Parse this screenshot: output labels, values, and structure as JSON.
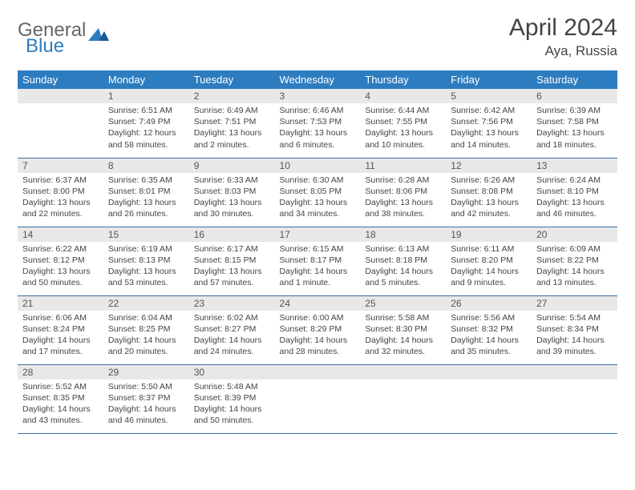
{
  "logo": {
    "general": "General",
    "blue": "Blue"
  },
  "title": "April 2024",
  "location": "Aya, Russia",
  "colors": {
    "header_bg": "#2e7cc0",
    "header_text": "#ffffff",
    "daynum_bg": "#e8e8e8",
    "row_divider": "#3a6ea5",
    "text": "#444444",
    "background": "#ffffff"
  },
  "weekday_labels": [
    "Sunday",
    "Monday",
    "Tuesday",
    "Wednesday",
    "Thursday",
    "Friday",
    "Saturday"
  ],
  "weeks": [
    [
      null,
      {
        "day": "1",
        "sunrise": "Sunrise: 6:51 AM",
        "sunset": "Sunset: 7:49 PM",
        "daylight": "Daylight: 12 hours and 58 minutes."
      },
      {
        "day": "2",
        "sunrise": "Sunrise: 6:49 AM",
        "sunset": "Sunset: 7:51 PM",
        "daylight": "Daylight: 13 hours and 2 minutes."
      },
      {
        "day": "3",
        "sunrise": "Sunrise: 6:46 AM",
        "sunset": "Sunset: 7:53 PM",
        "daylight": "Daylight: 13 hours and 6 minutes."
      },
      {
        "day": "4",
        "sunrise": "Sunrise: 6:44 AM",
        "sunset": "Sunset: 7:55 PM",
        "daylight": "Daylight: 13 hours and 10 minutes."
      },
      {
        "day": "5",
        "sunrise": "Sunrise: 6:42 AM",
        "sunset": "Sunset: 7:56 PM",
        "daylight": "Daylight: 13 hours and 14 minutes."
      },
      {
        "day": "6",
        "sunrise": "Sunrise: 6:39 AM",
        "sunset": "Sunset: 7:58 PM",
        "daylight": "Daylight: 13 hours and 18 minutes."
      }
    ],
    [
      {
        "day": "7",
        "sunrise": "Sunrise: 6:37 AM",
        "sunset": "Sunset: 8:00 PM",
        "daylight": "Daylight: 13 hours and 22 minutes."
      },
      {
        "day": "8",
        "sunrise": "Sunrise: 6:35 AM",
        "sunset": "Sunset: 8:01 PM",
        "daylight": "Daylight: 13 hours and 26 minutes."
      },
      {
        "day": "9",
        "sunrise": "Sunrise: 6:33 AM",
        "sunset": "Sunset: 8:03 PM",
        "daylight": "Daylight: 13 hours and 30 minutes."
      },
      {
        "day": "10",
        "sunrise": "Sunrise: 6:30 AM",
        "sunset": "Sunset: 8:05 PM",
        "daylight": "Daylight: 13 hours and 34 minutes."
      },
      {
        "day": "11",
        "sunrise": "Sunrise: 6:28 AM",
        "sunset": "Sunset: 8:06 PM",
        "daylight": "Daylight: 13 hours and 38 minutes."
      },
      {
        "day": "12",
        "sunrise": "Sunrise: 6:26 AM",
        "sunset": "Sunset: 8:08 PM",
        "daylight": "Daylight: 13 hours and 42 minutes."
      },
      {
        "day": "13",
        "sunrise": "Sunrise: 6:24 AM",
        "sunset": "Sunset: 8:10 PM",
        "daylight": "Daylight: 13 hours and 46 minutes."
      }
    ],
    [
      {
        "day": "14",
        "sunrise": "Sunrise: 6:22 AM",
        "sunset": "Sunset: 8:12 PM",
        "daylight": "Daylight: 13 hours and 50 minutes."
      },
      {
        "day": "15",
        "sunrise": "Sunrise: 6:19 AM",
        "sunset": "Sunset: 8:13 PM",
        "daylight": "Daylight: 13 hours and 53 minutes."
      },
      {
        "day": "16",
        "sunrise": "Sunrise: 6:17 AM",
        "sunset": "Sunset: 8:15 PM",
        "daylight": "Daylight: 13 hours and 57 minutes."
      },
      {
        "day": "17",
        "sunrise": "Sunrise: 6:15 AM",
        "sunset": "Sunset: 8:17 PM",
        "daylight": "Daylight: 14 hours and 1 minute."
      },
      {
        "day": "18",
        "sunrise": "Sunrise: 6:13 AM",
        "sunset": "Sunset: 8:18 PM",
        "daylight": "Daylight: 14 hours and 5 minutes."
      },
      {
        "day": "19",
        "sunrise": "Sunrise: 6:11 AM",
        "sunset": "Sunset: 8:20 PM",
        "daylight": "Daylight: 14 hours and 9 minutes."
      },
      {
        "day": "20",
        "sunrise": "Sunrise: 6:09 AM",
        "sunset": "Sunset: 8:22 PM",
        "daylight": "Daylight: 14 hours and 13 minutes."
      }
    ],
    [
      {
        "day": "21",
        "sunrise": "Sunrise: 6:06 AM",
        "sunset": "Sunset: 8:24 PM",
        "daylight": "Daylight: 14 hours and 17 minutes."
      },
      {
        "day": "22",
        "sunrise": "Sunrise: 6:04 AM",
        "sunset": "Sunset: 8:25 PM",
        "daylight": "Daylight: 14 hours and 20 minutes."
      },
      {
        "day": "23",
        "sunrise": "Sunrise: 6:02 AM",
        "sunset": "Sunset: 8:27 PM",
        "daylight": "Daylight: 14 hours and 24 minutes."
      },
      {
        "day": "24",
        "sunrise": "Sunrise: 6:00 AM",
        "sunset": "Sunset: 8:29 PM",
        "daylight": "Daylight: 14 hours and 28 minutes."
      },
      {
        "day": "25",
        "sunrise": "Sunrise: 5:58 AM",
        "sunset": "Sunset: 8:30 PM",
        "daylight": "Daylight: 14 hours and 32 minutes."
      },
      {
        "day": "26",
        "sunrise": "Sunrise: 5:56 AM",
        "sunset": "Sunset: 8:32 PM",
        "daylight": "Daylight: 14 hours and 35 minutes."
      },
      {
        "day": "27",
        "sunrise": "Sunrise: 5:54 AM",
        "sunset": "Sunset: 8:34 PM",
        "daylight": "Daylight: 14 hours and 39 minutes."
      }
    ],
    [
      {
        "day": "28",
        "sunrise": "Sunrise: 5:52 AM",
        "sunset": "Sunset: 8:35 PM",
        "daylight": "Daylight: 14 hours and 43 minutes."
      },
      {
        "day": "29",
        "sunrise": "Sunrise: 5:50 AM",
        "sunset": "Sunset: 8:37 PM",
        "daylight": "Daylight: 14 hours and 46 minutes."
      },
      {
        "day": "30",
        "sunrise": "Sunrise: 5:48 AM",
        "sunset": "Sunset: 8:39 PM",
        "daylight": "Daylight: 14 hours and 50 minutes."
      },
      null,
      null,
      null,
      null
    ]
  ]
}
